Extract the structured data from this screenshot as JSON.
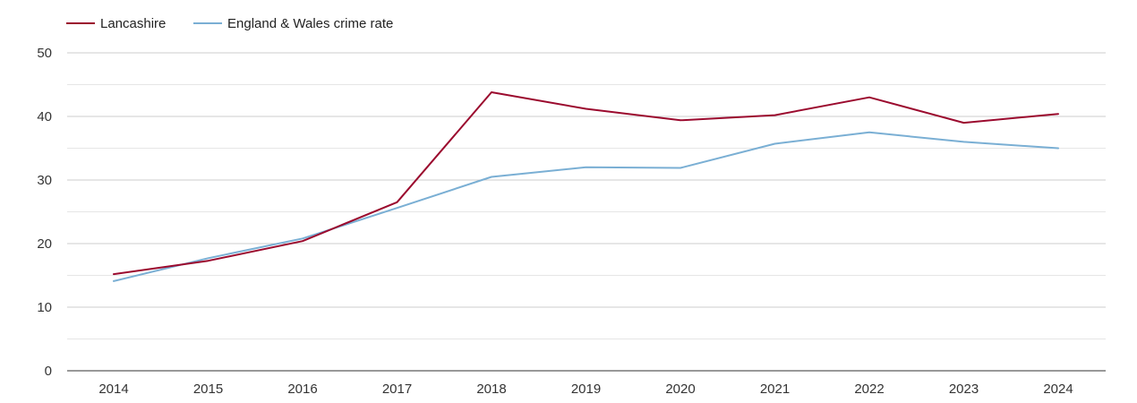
{
  "chart_data": {
    "type": "line",
    "title": "",
    "xlabel": "",
    "ylabel": "",
    "categories": [
      "2014",
      "2015",
      "2016",
      "2017",
      "2018",
      "2019",
      "2020",
      "2021",
      "2022",
      "2023",
      "2024"
    ],
    "ylim": [
      0,
      50
    ],
    "yticks": [
      0,
      10,
      20,
      30,
      40,
      50
    ],
    "grid": true,
    "legend_position": "top-left",
    "series": [
      {
        "name": "Lancashire",
        "color": "#9b0a2e",
        "values": [
          15.2,
          17.3,
          20.4,
          26.5,
          43.8,
          41.2,
          39.4,
          40.2,
          43.0,
          39.0,
          40.4
        ]
      },
      {
        "name": "England & Wales crime rate",
        "color": "#7aafd4",
        "values": [
          14.1,
          17.7,
          20.8,
          25.6,
          30.5,
          32.0,
          31.9,
          35.7,
          37.5,
          36.0,
          35.0
        ]
      }
    ]
  }
}
